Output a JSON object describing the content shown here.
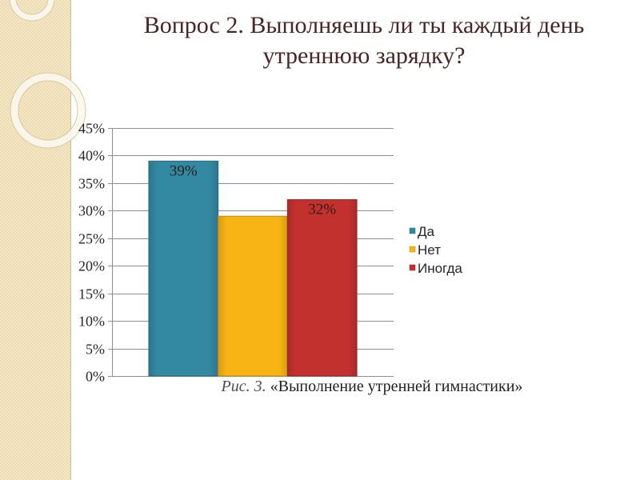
{
  "slide": {
    "title": "Вопрос 2. Выполняешь ли ты каждый день утреннюю зарядку?",
    "caption_label": "Рис. 3.",
    "caption_text": "«Выполнение утренней гимнастики»"
  },
  "colors": {
    "title": "#4b2424"
  },
  "chart_data": {
    "type": "bar",
    "series": [
      {
        "name": "Да",
        "values": [
          39
        ],
        "data_label": "39%",
        "color": "#3389a2"
      },
      {
        "name": "Нет",
        "values": [
          29
        ],
        "color": "#f8b415"
      },
      {
        "name": "Иногда",
        "values": [
          32
        ],
        "data_label": "32%",
        "color": "#c3312f"
      }
    ],
    "ylim": [
      0,
      45
    ],
    "yticks": [
      {
        "value": 0,
        "label": "0%"
      },
      {
        "value": 5,
        "label": "5%"
      },
      {
        "value": 10,
        "label": "10%"
      },
      {
        "value": 15,
        "label": "15%"
      },
      {
        "value": 20,
        "label": "20%"
      },
      {
        "value": 25,
        "label": "25%"
      },
      {
        "value": 30,
        "label": "30%"
      },
      {
        "value": 35,
        "label": "35%"
      },
      {
        "value": 40,
        "label": "40%"
      },
      {
        "value": 45,
        "label": "45%"
      }
    ],
    "grid": true,
    "legend": "right"
  }
}
